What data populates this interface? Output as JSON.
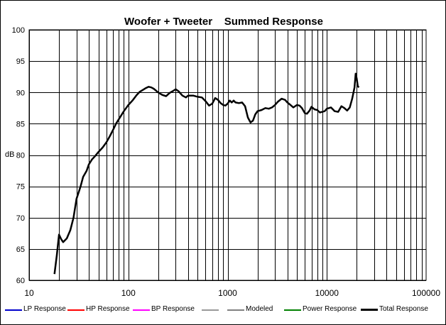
{
  "chart_data": {
    "type": "line",
    "title": "Woofer + Tweeter    Summed Response",
    "xlabel": "",
    "ylabel": "dB",
    "x_scale": "log",
    "xlim": [
      10,
      100000
    ],
    "ylim": [
      60,
      100
    ],
    "x_ticks": [
      "10",
      "100",
      "1000",
      "10000",
      "100000"
    ],
    "y_ticks": [
      "60",
      "65",
      "70",
      "75",
      "80",
      "85",
      "90",
      "95",
      "100"
    ],
    "grid": true,
    "legend_placement": "bottom",
    "legend": [
      {
        "name": "LP Response",
        "color": "#0000cc"
      },
      {
        "name": "HP Response",
        "color": "#ff0000"
      },
      {
        "name": "BP Response",
        "color": "#ff00ff"
      },
      {
        "name": "",
        "color": "#999999"
      },
      {
        "name": "Modeled",
        "color": "#808080"
      },
      {
        "name": "Power Response",
        "color": "#008000"
      },
      {
        "name": "Total Response",
        "color": "#000000"
      }
    ],
    "series": [
      {
        "name": "Total Response",
        "color": "#000000",
        "points": [
          [
            18,
            61
          ],
          [
            19,
            64
          ],
          [
            20,
            67.3
          ],
          [
            21,
            66.6
          ],
          [
            22,
            66.1
          ],
          [
            24,
            66.7
          ],
          [
            26,
            68
          ],
          [
            28,
            70
          ],
          [
            30,
            73
          ],
          [
            33,
            75
          ],
          [
            35,
            76.5
          ],
          [
            38,
            77.5
          ],
          [
            40,
            78.5
          ],
          [
            43,
            79.3
          ],
          [
            46,
            79.8
          ],
          [
            50,
            80.5
          ],
          [
            55,
            81.2
          ],
          [
            60,
            82
          ],
          [
            65,
            83
          ],
          [
            70,
            84
          ],
          [
            75,
            85
          ],
          [
            80,
            85.7
          ],
          [
            90,
            87
          ],
          [
            100,
            88
          ],
          [
            110,
            88.7
          ],
          [
            120,
            89.5
          ],
          [
            130,
            90.1
          ],
          [
            140,
            90.4
          ],
          [
            150,
            90.7
          ],
          [
            160,
            90.9
          ],
          [
            170,
            90.8
          ],
          [
            180,
            90.6
          ],
          [
            200,
            90
          ],
          [
            220,
            89.6
          ],
          [
            240,
            89.4
          ],
          [
            260,
            89.9
          ],
          [
            280,
            90.2
          ],
          [
            300,
            90.5
          ],
          [
            320,
            90.2
          ],
          [
            350,
            89.5
          ],
          [
            380,
            89.2
          ],
          [
            400,
            89.5
          ],
          [
            450,
            89.5
          ],
          [
            500,
            89.3
          ],
          [
            550,
            89.2
          ],
          [
            600,
            88.6
          ],
          [
            650,
            87.9
          ],
          [
            700,
            88.2
          ],
          [
            750,
            89.1
          ],
          [
            800,
            88.8
          ],
          [
            850,
            88.3
          ],
          [
            900,
            88
          ],
          [
            950,
            87.9
          ],
          [
            1000,
            88.2
          ],
          [
            1050,
            88.7
          ],
          [
            1100,
            88.4
          ],
          [
            1150,
            88.7
          ],
          [
            1200,
            88.4
          ],
          [
            1300,
            88.3
          ],
          [
            1400,
            88.4
          ],
          [
            1500,
            87.8
          ],
          [
            1600,
            86
          ],
          [
            1700,
            85.2
          ],
          [
            1800,
            85.5
          ],
          [
            1900,
            86.5
          ],
          [
            2000,
            87
          ],
          [
            2200,
            87.2
          ],
          [
            2400,
            87.5
          ],
          [
            2600,
            87.4
          ],
          [
            2800,
            87.6
          ],
          [
            3000,
            88
          ],
          [
            3200,
            88.5
          ],
          [
            3500,
            89
          ],
          [
            3800,
            88.8
          ],
          [
            4000,
            88.4
          ],
          [
            4300,
            88
          ],
          [
            4600,
            87.6
          ],
          [
            5000,
            88
          ],
          [
            5300,
            87.9
          ],
          [
            5600,
            87.5
          ],
          [
            6000,
            86.7
          ],
          [
            6300,
            86.6
          ],
          [
            6700,
            87.1
          ],
          [
            7000,
            87.7
          ],
          [
            7500,
            87.3
          ],
          [
            8000,
            87.2
          ],
          [
            8500,
            86.8
          ],
          [
            9000,
            86.9
          ],
          [
            9500,
            87
          ],
          [
            10000,
            87.4
          ],
          [
            11000,
            87.6
          ],
          [
            12000,
            87
          ],
          [
            13000,
            86.9
          ],
          [
            14000,
            87.8
          ],
          [
            15000,
            87.5
          ],
          [
            16000,
            87.1
          ],
          [
            17000,
            87.6
          ],
          [
            18000,
            89
          ],
          [
            19000,
            90.8
          ],
          [
            19500,
            93
          ],
          [
            20000,
            92.2
          ],
          [
            20500,
            91
          ],
          [
            21000,
            90.8
          ]
        ]
      }
    ]
  }
}
